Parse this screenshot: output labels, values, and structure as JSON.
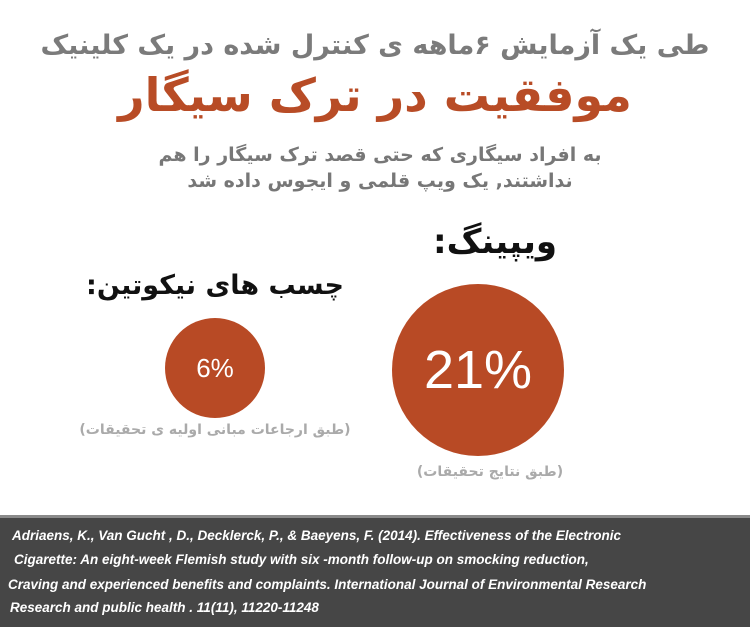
{
  "header": {
    "supertitle": "طی یک آزمایش ۶ماهه ی کنترل شده در یک کلینیک",
    "title": "موفقیت در ترک سیگار",
    "subtitle_line1": "به افراد سیگاری که حتی قصد ترک سیگار را هم",
    "subtitle_line2": "نداشتند, یک ویپ قلمی و ایجوس داده شد"
  },
  "comparison": {
    "vaping": {
      "label": "ویپینگ:",
      "value_text": "21%",
      "value": 21,
      "caption": "(طبق نتایج تحقیقات)"
    },
    "patches": {
      "label": "چسب های نیکوتین:",
      "value_text": "6%",
      "value": 6,
      "caption": "(طبق ارجاعات مبانی اولیه ی تحقیقات)"
    }
  },
  "colors": {
    "accent": "#b84a25",
    "gray_text": "#7b7b7b",
    "footer_bg": "#464646"
  },
  "reference": {
    "line1": "Adriaens, K., Van Gucht , D., Decklerck, P., & Baeyens, F. (2014). Effectiveness of the Electronic",
    "line2": "Cigarette: An eight-week Flemish study with six -month follow-up on smocking reduction,",
    "line3": "Craving and experienced benefits and complaints. International Journal  of Environmental Research",
    "line4": "Research and public health . 11(11), 11220-11248"
  }
}
